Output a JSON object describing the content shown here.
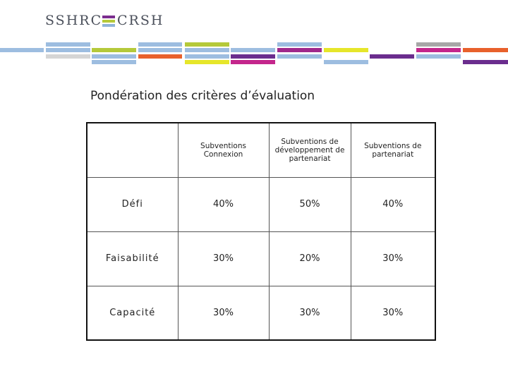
{
  "header": {
    "logo_left": "SSHRC",
    "logo_right": "CRSH"
  },
  "title": "Pondération des critères d’évaluation",
  "table": {
    "columns": [
      "Subventions Connexion",
      "Subventions de développement de partenariat",
      "Subventions de partenariat"
    ],
    "rows": [
      [
        "Défi",
        "40%",
        "50%",
        "40%"
      ],
      [
        "Faisabilité",
        "30%",
        "20%",
        "30%"
      ],
      [
        "Capacité",
        "30%",
        "30%",
        "30%"
      ]
    ]
  }
}
